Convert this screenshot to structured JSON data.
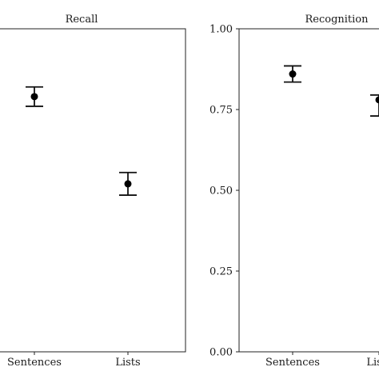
{
  "chart_data": [
    {
      "type": "scatter",
      "title": "Recall",
      "xlabel": "",
      "ylabel": "",
      "categories": [
        "Sentences",
        "Lists"
      ],
      "ylim": [
        0,
        1
      ],
      "yticks": [],
      "grid": false,
      "series": [
        {
          "values": [
            0.79,
            0.52
          ],
          "error_low": [
            0.76,
            0.485
          ],
          "error_high": [
            0.82,
            0.555
          ]
        }
      ]
    },
    {
      "type": "scatter",
      "title": "Recognition",
      "xlabel": "",
      "ylabel": "",
      "categories": [
        "Sentences",
        "Lists"
      ],
      "ylim": [
        0,
        1
      ],
      "yticks": [
        "0.00",
        "0.25",
        "0.50",
        "0.75",
        "1.00"
      ],
      "grid": false,
      "series": [
        {
          "values": [
            0.86,
            0.78
          ],
          "error_low": [
            0.835,
            0.73
          ],
          "error_high": [
            0.885,
            0.795
          ]
        }
      ]
    }
  ]
}
